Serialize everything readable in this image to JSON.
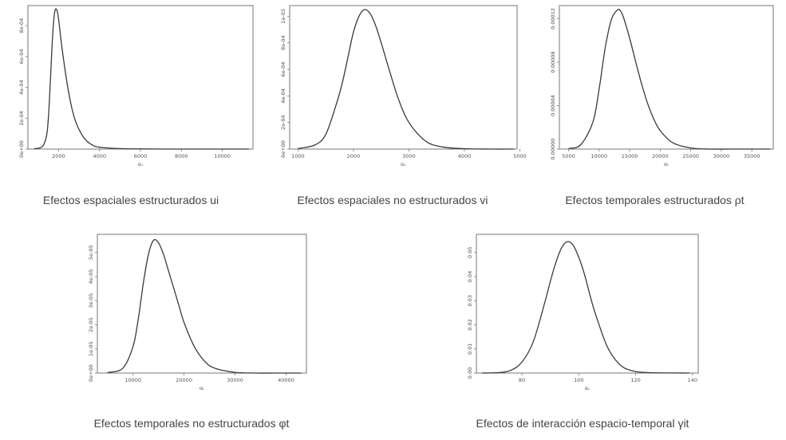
{
  "chart_data": [
    {
      "type": "line",
      "caption": "Efectos espaciales estructurados ui",
      "xlabel": "αᵤ",
      "x_ticks": [
        2000,
        4000,
        6000,
        8000,
        10000
      ],
      "y_ticks": [
        0,
        0.0002,
        0.0004,
        0.0006,
        0.0008
      ],
      "y_tick_labels": [
        "0e+00",
        "2e-04",
        "4e-04",
        "6e-04",
        "8e-04"
      ],
      "xlim": [
        500,
        11500
      ],
      "ylim": [
        0,
        0.00093
      ],
      "series": [
        {
          "x": [
            800,
            1200,
            1400,
            1500,
            1600,
            1700,
            1800,
            1900,
            2000,
            2200,
            2500,
            2800,
            3200,
            3600,
            4000,
            5000,
            6000,
            8000,
            10000,
            11300
          ],
          "y": [
            2e-06,
            1.5e-05,
            8e-05,
            0.0002,
            0.00045,
            0.00072,
            0.00088,
            0.000905,
            0.00084,
            0.00062,
            0.00036,
            0.00019,
            8e-05,
            3e-05,
            1.2e-05,
            3e-06,
            1e-06,
            0,
            0,
            0
          ]
        }
      ]
    },
    {
      "type": "line",
      "caption": "Efectos espaciales no estructurados vi",
      "xlabel": "αᵥ",
      "x_ticks": [
        1000,
        2000,
        3000,
        4000,
        5000
      ],
      "y_ticks": [
        0,
        0.0002,
        0.0004,
        0.0006,
        0.0008,
        0.001
      ],
      "y_tick_labels": [
        "0e+00",
        "2e-04",
        "4e-04",
        "6e-04",
        "8e-04",
        "1e-03"
      ],
      "xlim": [
        850,
        4950
      ],
      "ylim": [
        0,
        0.00108
      ],
      "series": [
        {
          "x": [
            1000,
            1300,
            1500,
            1700,
            1800,
            1900,
            2000,
            2100,
            2200,
            2300,
            2400,
            2500,
            2600,
            2800,
            3000,
            3300,
            3600,
            4000,
            4500,
            4900
          ],
          "y": [
            4e-06,
            3e-05,
            0.00011,
            0.00035,
            0.0005,
            0.00069,
            0.00088,
            0.001,
            0.00105,
            0.00102,
            0.00093,
            0.0008,
            0.00066,
            0.00039,
            0.0002,
            6e-05,
            1.6e-05,
            3e-06,
            0,
            0
          ]
        }
      ]
    },
    {
      "type": "line",
      "caption": "Efectos temporales estructurados ρt",
      "xlabel": "αₜ",
      "x_ticks": [
        5000,
        10000,
        15000,
        20000,
        25000,
        30000,
        35000
      ],
      "y_ticks": [
        0,
        4e-05,
        8e-05,
        0.00012
      ],
      "y_tick_labels": [
        "0.00000",
        "0.00004",
        "0.00008",
        "0.00012"
      ],
      "xlim": [
        3500,
        38500
      ],
      "ylim": [
        0,
        0.000132
      ],
      "series": [
        {
          "x": [
            5000,
            7000,
            9000,
            10000,
            11000,
            12000,
            13000,
            13500,
            14000,
            15000,
            16000,
            17000,
            18000,
            19000,
            20000,
            22000,
            25000,
            28000,
            32000,
            38000
          ],
          "y": [
            5e-07,
            4e-06,
            2.5e-05,
            5.5e-05,
            9.3e-05,
            0.000119,
            0.000128,
            0.000127,
            0.000121,
            0.000102,
            8e-05,
            5.9e-05,
            4.1e-05,
            2.7e-05,
            1.7e-05,
            6e-06,
            1e-06,
            0,
            0,
            0
          ]
        }
      ]
    },
    {
      "type": "line",
      "caption": "Efectos temporales no estructurados φt",
      "xlabel": "αₜ",
      "x_ticks": [
        10000,
        20000,
        30000,
        40000
      ],
      "y_ticks": [
        0,
        1e-05,
        2e-05,
        3e-05,
        4e-05,
        5e-05
      ],
      "y_tick_labels": [
        "0e+00",
        "1e-05",
        "2e-05",
        "3e-05",
        "4e-05",
        "5e-05"
      ],
      "xlim": [
        3000,
        44000
      ],
      "ylim": [
        0,
        5.75e-05
      ],
      "series": [
        {
          "x": [
            5000,
            8000,
            10000,
            11000,
            12000,
            13000,
            14000,
            15000,
            16000,
            17000,
            18000,
            19000,
            20000,
            22000,
            24000,
            26000,
            30000,
            34000,
            38000,
            43000
          ],
          "y": [
            2e-07,
            2e-06,
            1.1e-05,
            2.2e-05,
            3.7e-05,
            4.9e-05,
            5.5e-05,
            5.4e-05,
            4.9e-05,
            4.2e-05,
            3.5e-05,
            2.8e-05,
            2.1e-05,
            1.1e-05,
            5e-06,
            2e-06,
            3e-07,
            0,
            0,
            0
          ]
        }
      ]
    },
    {
      "type": "line",
      "caption": "Efectos de interacción espacio-temporal γit",
      "xlabel": "αₛ",
      "x_ticks": [
        80,
        100,
        120,
        140
      ],
      "y_ticks": [
        0,
        0.01,
        0.02,
        0.03,
        0.04,
        0.05
      ],
      "y_tick_labels": [
        "0.00",
        "0.01",
        "0.02",
        "0.03",
        "0.04",
        "0.05"
      ],
      "xlim": [
        64,
        142
      ],
      "ylim": [
        0,
        0.0575
      ],
      "series": [
        {
          "x": [
            66,
            72,
            76,
            80,
            84,
            88,
            90,
            92,
            94,
            96,
            98,
            100,
            102,
            104,
            106,
            110,
            114,
            118,
            124,
            139
          ],
          "y": [
            0,
            0.0002,
            0.0011,
            0.0045,
            0.013,
            0.029,
            0.038,
            0.046,
            0.052,
            0.0545,
            0.053,
            0.048,
            0.041,
            0.032,
            0.024,
            0.011,
            0.004,
            0.0012,
            0.0002,
            0
          ]
        }
      ]
    }
  ]
}
